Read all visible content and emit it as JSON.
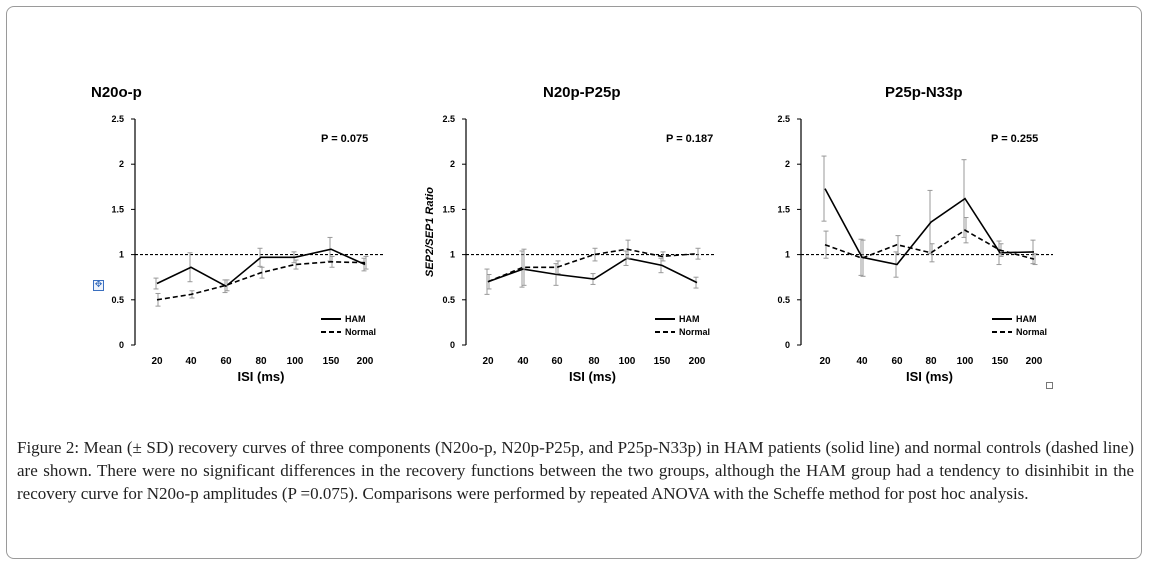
{
  "caption": {
    "label": "Figure 2:",
    "text": " Mean (± SD) recovery curves of three components (N20o-p, N20p-P25p, and P25p-N33p) in HAM patients (solid line) and normal controls (dashed line) are shown. There were no significant differences in the recovery functions between the two groups, although the HAM group had a tendency to disinhibit in the recovery curve for N20o-p amplitudes (P =0.075). Comparisons were performed by repeated ANOVA with the Scheffe method for post hoc analysis."
  },
  "icons": {
    "move_handle": "move-handle-icon",
    "resize_handle": "resize-handle-icon"
  },
  "colors": {
    "line": "#000000",
    "error_bar": "#999999"
  },
  "chart_data": [
    {
      "type": "line",
      "title": "N20o-p",
      "xlabel": "ISI (ms)",
      "ylabel": "",
      "categories": [
        "20",
        "40",
        "60",
        "80",
        "100",
        "150",
        "200"
      ],
      "ylim": [
        0,
        2.5
      ],
      "yticks": [
        "0",
        "0.5",
        "1",
        "1.5",
        "2",
        "2.5"
      ],
      "reference_line": 1,
      "annotation": "P = 0.075",
      "legend_position": "bottom-right",
      "series": [
        {
          "name": "HAM",
          "style": "solid",
          "values": [
            0.68,
            0.86,
            0.65,
            0.97,
            0.97,
            1.06,
            0.89
          ],
          "sd": [
            0.06,
            0.16,
            0.07,
            0.1,
            0.06,
            0.13,
            0.07
          ]
        },
        {
          "name": "Normal",
          "style": "dashed",
          "values": [
            0.5,
            0.56,
            0.66,
            0.8,
            0.89,
            0.92,
            0.91
          ],
          "sd": [
            0.07,
            0.04,
            0.06,
            0.06,
            0.05,
            0.06,
            0.07
          ]
        }
      ]
    },
    {
      "type": "line",
      "title": "N20p-P25p",
      "xlabel": "ISI (ms)",
      "ylabel": "SEP2/SEP1 Ratio",
      "categories": [
        "20",
        "40",
        "60",
        "80",
        "100",
        "150",
        "200"
      ],
      "ylim": [
        0,
        2.5
      ],
      "yticks": [
        "0",
        "0.5",
        "1",
        "1.5",
        "2",
        "2.5"
      ],
      "reference_line": 1,
      "annotation": "P = 0.187",
      "legend_position": "bottom-right",
      "series": [
        {
          "name": "HAM",
          "style": "solid",
          "values": [
            0.7,
            0.84,
            0.78,
            0.73,
            0.96,
            0.88,
            0.69
          ],
          "sd": [
            0.14,
            0.2,
            0.12,
            0.06,
            0.08,
            0.08,
            0.06
          ]
        },
        {
          "name": "Normal",
          "style": "dashed",
          "values": [
            0.7,
            0.86,
            0.86,
            1.0,
            1.06,
            0.98,
            1.01
          ],
          "sd": [
            0.08,
            0.2,
            0.07,
            0.07,
            0.1,
            0.05,
            0.06
          ]
        }
      ]
    },
    {
      "type": "line",
      "title": "P25p-N33p",
      "xlabel": "ISI (ms)",
      "ylabel": "",
      "categories": [
        "20",
        "40",
        "60",
        "80",
        "100",
        "150",
        "200"
      ],
      "ylim": [
        0,
        2.5
      ],
      "yticks": [
        "0",
        "0.5",
        "1",
        "1.5",
        "2",
        "2.5"
      ],
      "reference_line": 1,
      "annotation": "P = 0.255",
      "legend_position": "bottom-right",
      "series": [
        {
          "name": "HAM",
          "style": "solid",
          "values": [
            1.73,
            0.97,
            0.89,
            1.36,
            1.62,
            1.02,
            1.03
          ],
          "sd": [
            0.36,
            0.2,
            0.14,
            0.35,
            0.43,
            0.13,
            0.13
          ]
        },
        {
          "name": "Normal",
          "style": "dashed",
          "values": [
            1.11,
            0.96,
            1.11,
            1.02,
            1.27,
            1.05,
            0.95
          ],
          "sd": [
            0.15,
            0.2,
            0.1,
            0.1,
            0.14,
            0.07,
            0.06
          ]
        }
      ]
    }
  ]
}
